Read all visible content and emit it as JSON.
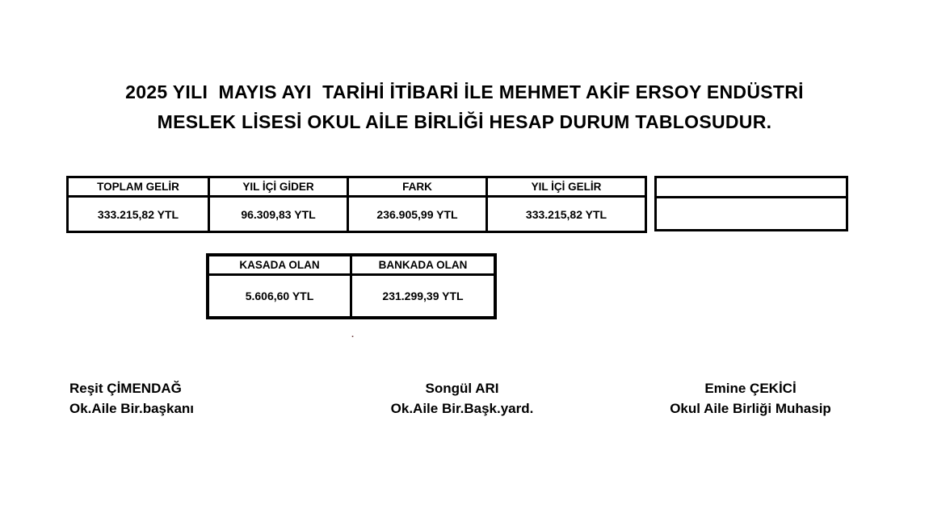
{
  "title": {
    "line1": "2025 YILI  MAYIS AYI  TARİHİ İTİBARİ İLE MEHMET AKİF ERSOY ENDÜSTRİ",
    "line2": "MESLEK LİSESİ OKUL AİLE BİRLİĞİ HESAP DURUM TABLOSUDUR."
  },
  "summary_table": {
    "columns": [
      {
        "header": "TOPLAM GELİR",
        "value": "333.215,82 YTL"
      },
      {
        "header": "YIL İÇİ GİDER",
        "value": "96.309,83 YTL"
      },
      {
        "header": "FARK",
        "value": "236.905,99 YTL"
      },
      {
        "header": "YIL İÇİ GELİR",
        "value": "333.215,82 YTL"
      },
      {
        "header": "",
        "value": ""
      }
    ]
  },
  "cash_table": {
    "columns": [
      {
        "header": "KASADA OLAN",
        "value": "5.606,60 YTL"
      },
      {
        "header": "BANKADA OLAN",
        "value": "231.299,39 YTL"
      }
    ]
  },
  "signatures": [
    {
      "name": "Reşit ÇİMENDAĞ",
      "title": "Ok.Aile Bir.başkanı"
    },
    {
      "name": "Songül ARI",
      "title": "Ok.Aile Bir.Başk.yard."
    },
    {
      "name": "Emine ÇEKİCİ",
      "title": "Okul Aile Birliği Muhasip"
    }
  ],
  "stray_mark": ".",
  "colors": {
    "background": "#ffffff",
    "text": "#000000",
    "border": "#000000",
    "stray_mark": "#6b3a3a"
  }
}
